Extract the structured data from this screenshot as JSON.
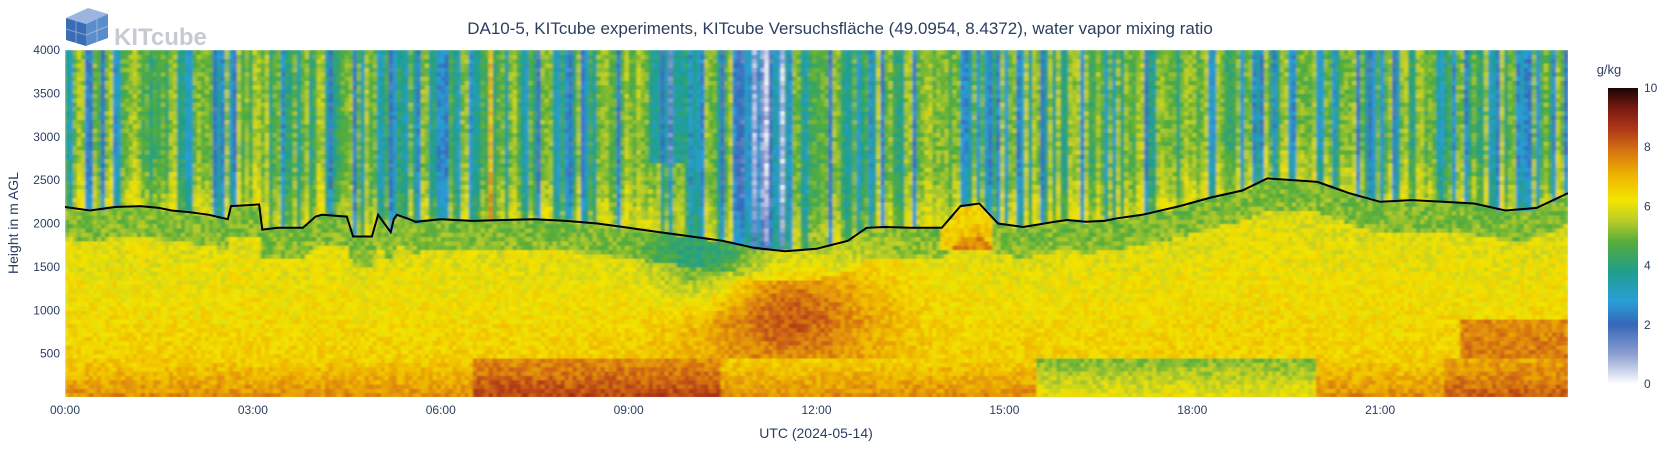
{
  "logo": {
    "text": "KITcube",
    "name": "kitcube-logo"
  },
  "chart_data": {
    "type": "heatmap",
    "title": "DA10-5, KITcube experiments, KITcube Versuchsfläche (49.0954, 8.4372), water vapor mixing ratio",
    "xlabel": "UTC (2024-05-14)",
    "ylabel": "Height in m AGL",
    "x_unit": "hours UTC",
    "xlim": [
      0,
      24
    ],
    "ylim": [
      0,
      4000
    ],
    "x_ticks": [
      {
        "value": 0,
        "label": "00:00"
      },
      {
        "value": 3,
        "label": "03:00"
      },
      {
        "value": 6,
        "label": "06:00"
      },
      {
        "value": 9,
        "label": "09:00"
      },
      {
        "value": 12,
        "label": "12:00"
      },
      {
        "value": 15,
        "label": "15:00"
      },
      {
        "value": 18,
        "label": "18:00"
      },
      {
        "value": 21,
        "label": "21:00"
      }
    ],
    "y_ticks": [
      {
        "value": 500,
        "label": "500"
      },
      {
        "value": 1000,
        "label": "1000"
      },
      {
        "value": 1500,
        "label": "1500"
      },
      {
        "value": 2000,
        "label": "2000"
      },
      {
        "value": 2500,
        "label": "2500"
      },
      {
        "value": 3000,
        "label": "3000"
      },
      {
        "value": 3500,
        "label": "3500"
      },
      {
        "value": 4000,
        "label": "4000"
      }
    ],
    "colorbar": {
      "title": "g/kg",
      "range": [
        0,
        10
      ],
      "ticks": [
        {
          "value": 0,
          "label": "0"
        },
        {
          "value": 2,
          "label": "2"
        },
        {
          "value": 4,
          "label": "4"
        },
        {
          "value": 6,
          "label": "6"
        },
        {
          "value": 8,
          "label": "8"
        },
        {
          "value": 10,
          "label": "10"
        }
      ],
      "colorscale": [
        [
          0.0,
          "#ffffff"
        ],
        [
          0.1,
          "#8d9fd0"
        ],
        [
          0.2,
          "#3567b8"
        ],
        [
          0.28,
          "#2a9ed8"
        ],
        [
          0.38,
          "#1f9e8c"
        ],
        [
          0.48,
          "#55ad3a"
        ],
        [
          0.55,
          "#b8cc2a"
        ],
        [
          0.62,
          "#f3e500"
        ],
        [
          0.7,
          "#f0b800"
        ],
        [
          0.78,
          "#d97a10"
        ],
        [
          0.86,
          "#b03818"
        ],
        [
          0.93,
          "#7a1a10"
        ],
        [
          1.0,
          "#1a0505"
        ]
      ]
    },
    "line_series": {
      "name": "",
      "color": "#000000",
      "x": [
        0.0,
        0.4,
        0.8,
        1.2,
        1.5,
        1.7,
        2.0,
        2.3,
        2.6,
        2.65,
        2.9,
        3.1,
        3.15,
        3.4,
        3.8,
        4.0,
        4.1,
        4.5,
        4.6,
        4.9,
        5.0,
        5.2,
        5.25,
        5.3,
        5.5,
        5.6,
        6.0,
        6.5,
        7.0,
        7.5,
        8.0,
        8.5,
        9.0,
        9.5,
        10.0,
        10.5,
        11.0,
        11.5,
        12.0,
        12.5,
        12.8,
        13.1,
        13.5,
        14.0,
        14.3,
        14.6,
        14.9,
        15.3,
        15.8,
        16.0,
        16.3,
        16.6,
        16.8,
        17.2,
        17.8,
        18.3,
        18.8,
        19.2,
        19.6,
        20.0,
        20.5,
        21.0,
        21.5,
        22.0,
        22.5,
        23.0,
        23.5,
        24.0
      ],
      "y": [
        2190,
        2150,
        2190,
        2200,
        2180,
        2150,
        2130,
        2100,
        2050,
        2200,
        2210,
        2220,
        1930,
        1950,
        1950,
        2080,
        2100,
        2080,
        1850,
        1850,
        2100,
        1900,
        2050,
        2100,
        2050,
        2020,
        2050,
        2030,
        2040,
        2050,
        2030,
        2000,
        1950,
        1900,
        1850,
        1800,
        1720,
        1680,
        1710,
        1800,
        1950,
        1960,
        1950,
        1950,
        2200,
        2230,
        2000,
        1960,
        2020,
        2040,
        2020,
        2030,
        2060,
        2100,
        2200,
        2300,
        2380,
        2520,
        2500,
        2480,
        2350,
        2250,
        2270,
        2250,
        2230,
        2150,
        2180,
        2350
      ]
    }
  }
}
